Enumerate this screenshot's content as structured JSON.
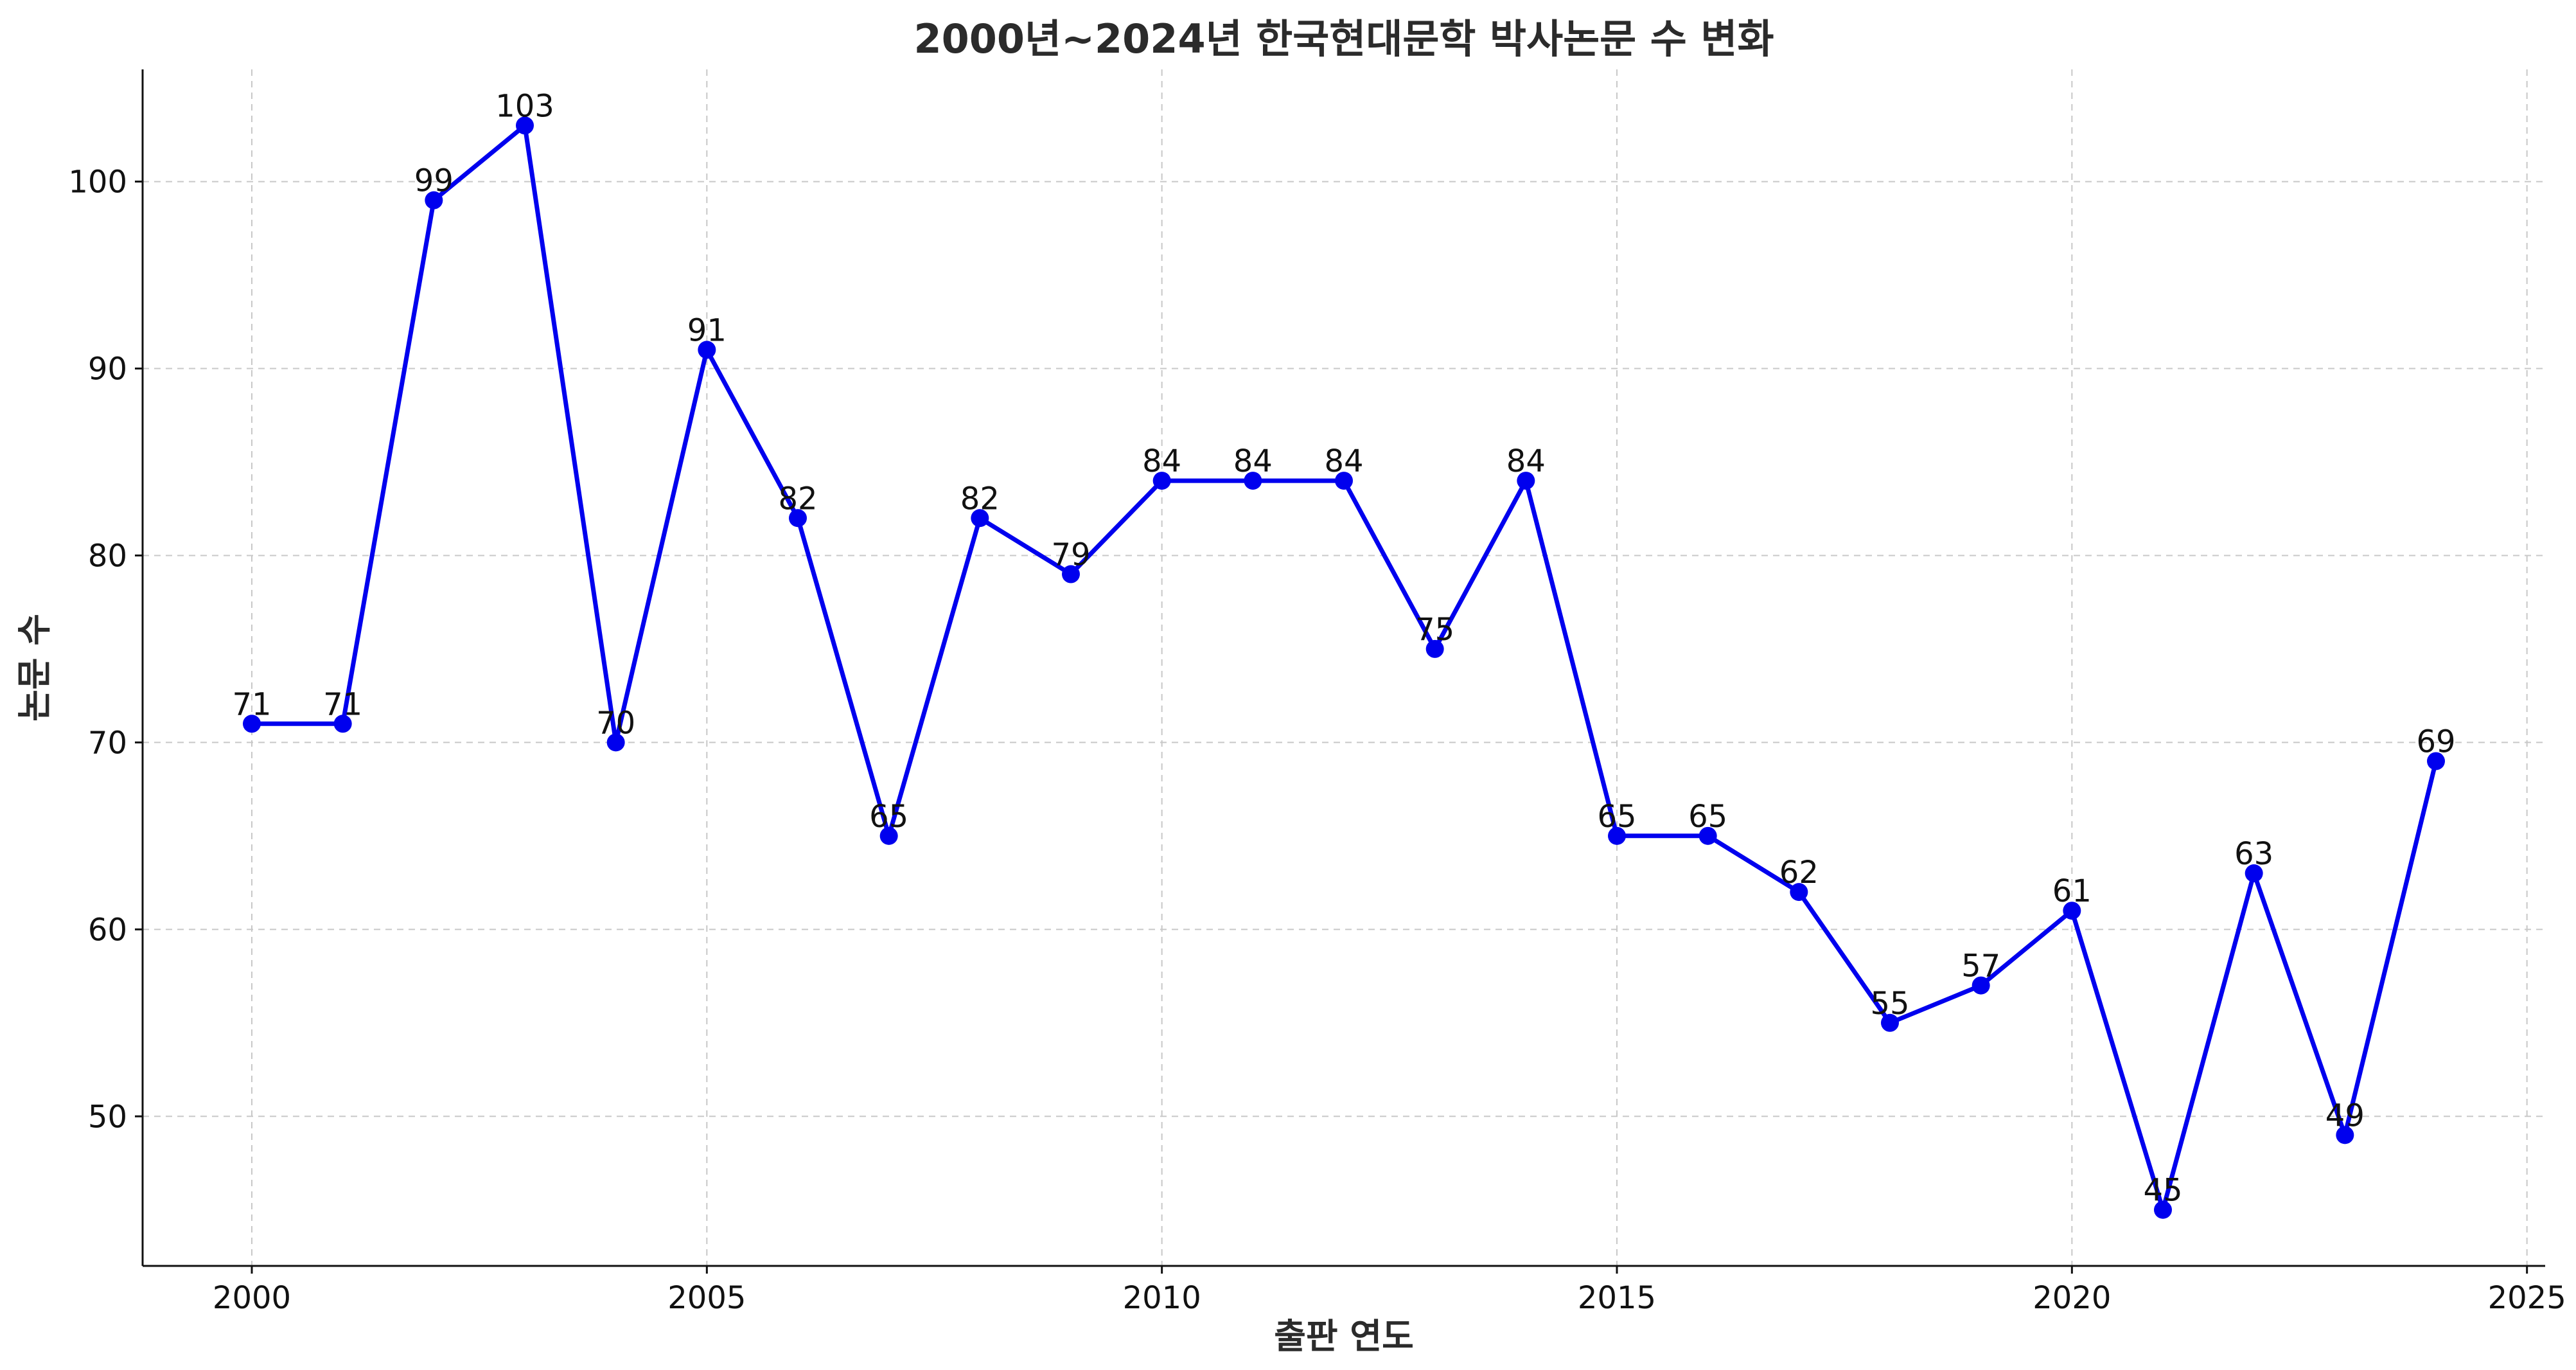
{
  "chart_data": {
    "type": "line",
    "title": "2000년~2024년 한국현대문학 박사논문 수 변화",
    "xlabel": "출판 연도",
    "ylabel": "논문 수",
    "x": [
      2000,
      2001,
      2002,
      2003,
      2004,
      2005,
      2006,
      2007,
      2008,
      2009,
      2010,
      2011,
      2012,
      2013,
      2014,
      2015,
      2016,
      2017,
      2018,
      2019,
      2020,
      2021,
      2022,
      2023,
      2024
    ],
    "series": [
      {
        "values": [
          71,
          71,
          99,
          103,
          70,
          91,
          82,
          65,
          82,
          79,
          84,
          84,
          84,
          75,
          84,
          65,
          65,
          62,
          55,
          57,
          61,
          45,
          63,
          49,
          69
        ],
        "color": "#0000ee",
        "marker": "circle"
      }
    ],
    "xlim": [
      1998.8,
      2025.2
    ],
    "ylim": [
      42,
      106
    ],
    "xticks": [
      2000,
      2005,
      2010,
      2015,
      2020,
      2025
    ],
    "yticks": [
      50,
      60,
      70,
      80,
      90,
      100
    ],
    "grid": true,
    "data_labels": true,
    "legend": "none"
  }
}
